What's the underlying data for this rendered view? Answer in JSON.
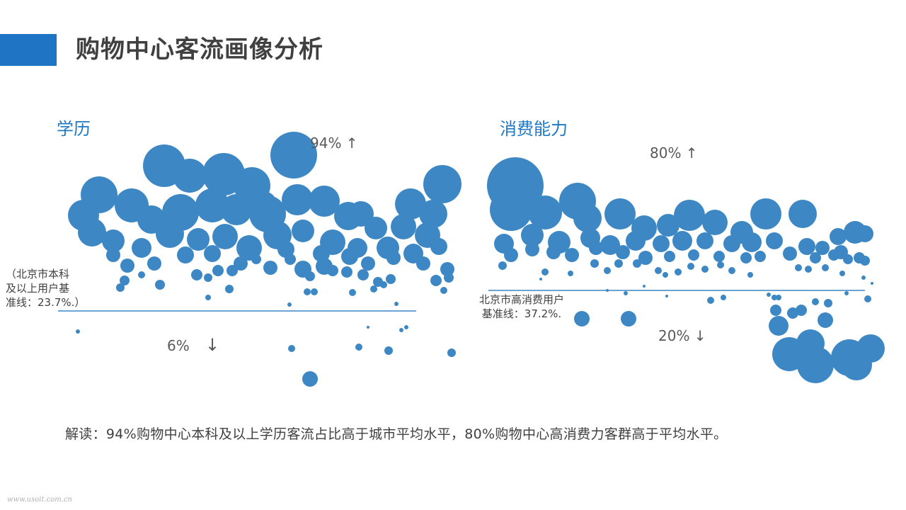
{
  "page": {
    "title": "购物中心客流画像分析",
    "summary": "解读：94%购物中心本科及以上学历客流占比高于城市平均水平，80%购物中心高消费力客群高于平均水平。",
    "watermark": "www.usoit.com.cn"
  },
  "colors": {
    "accent": "#1f74c4",
    "bubble": "#3d88c4",
    "baseline": "#3b87c5",
    "title_text": "#404040"
  },
  "chart_data": [
    {
      "type": "scatter",
      "title": "学历",
      "above_label": "94% ↑",
      "below_label": "6%",
      "below_arrow": "↓",
      "baseline_label": "（北京市本科\n及以上用户基\n准线：23.7%.）",
      "baseline_value": 23.7
    },
    {
      "type": "scatter",
      "title": "消费能力",
      "above_label": "80% ↑",
      "below_label": "20% ↓",
      "baseline_label": "北京市高消费用户\n基准线：37.2%.",
      "baseline_value": 37.2
    }
  ]
}
